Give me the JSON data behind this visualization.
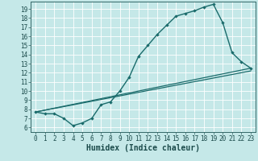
{
  "xlabel": "Humidex (Indice chaleur)",
  "bg_color": "#c5e8e8",
  "line_color": "#1a6b6b",
  "grid_color": "#ffffff",
  "line1_x": [
    0,
    1,
    2,
    3,
    4,
    5,
    6,
    7,
    8,
    9,
    10,
    11,
    12,
    13,
    14,
    15,
    16,
    17,
    18,
    19,
    20,
    21,
    22,
    23
  ],
  "line1_y": [
    7.7,
    7.5,
    7.5,
    7.0,
    6.2,
    6.5,
    7.0,
    8.5,
    8.8,
    10.0,
    11.5,
    13.8,
    15.0,
    16.2,
    17.2,
    18.2,
    18.5,
    18.8,
    19.2,
    19.5,
    17.5,
    14.2,
    13.2,
    12.5
  ],
  "line2_x": [
    0,
    23
  ],
  "line2_y": [
    7.7,
    12.5
  ],
  "line3_x": [
    0,
    23
  ],
  "line3_y": [
    7.7,
    12.2
  ],
  "xlim": [
    -0.5,
    23.5
  ],
  "ylim": [
    5.5,
    19.8
  ],
  "xticks": [
    0,
    1,
    2,
    3,
    4,
    5,
    6,
    7,
    8,
    9,
    10,
    11,
    12,
    13,
    14,
    15,
    16,
    17,
    18,
    19,
    20,
    21,
    22,
    23
  ],
  "yticks": [
    6,
    7,
    8,
    9,
    10,
    11,
    12,
    13,
    14,
    15,
    16,
    17,
    18,
    19
  ],
  "tick_fontsize": 5.5,
  "xlabel_fontsize": 7.0
}
